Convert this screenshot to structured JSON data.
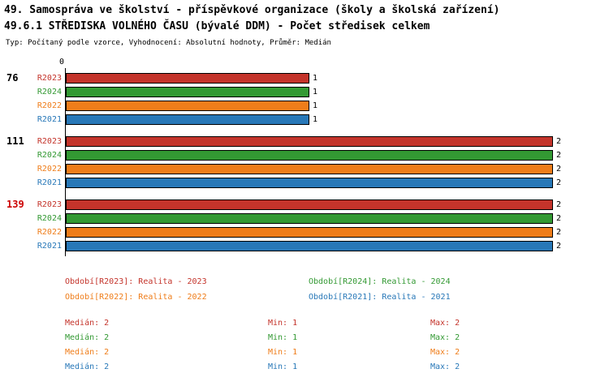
{
  "header": {
    "title_line1": "49. Samospráva ve školství - příspěvkové organizace (školy a školská zařízení)",
    "title_line2": "49.6.1 STŘEDISKA VOLNÉHO ČASU (bývalé DDM) - Počet středisek celkem",
    "subtitle": "Typ: Počítaný podle vzorce, Vyhodnocení: Absolutní hodnoty, Průměr: Medián"
  },
  "chart_data": {
    "type": "bar",
    "orientation": "horizontal",
    "x_origin_label": "0",
    "xlim": [
      0,
      2
    ],
    "grid": false,
    "series_order": [
      "R2023",
      "R2024",
      "R2022",
      "R2021"
    ],
    "series_colors": {
      "R2023": "#c4342b",
      "R2024": "#339933",
      "R2022": "#ef7d1a",
      "R2021": "#2878b8"
    },
    "groups": [
      {
        "label": "76",
        "label_color": "#000000",
        "values": {
          "R2023": 1,
          "R2024": 1,
          "R2022": 1,
          "R2021": 1
        }
      },
      {
        "label": "111",
        "label_color": "#000000",
        "values": {
          "R2023": 2,
          "R2024": 2,
          "R2022": 2,
          "R2021": 2
        }
      },
      {
        "label": "139",
        "label_color": "#cc0000",
        "values": {
          "R2023": 2,
          "R2024": 2,
          "R2022": 2,
          "R2021": 2
        }
      }
    ],
    "legend": [
      {
        "series": "R2023",
        "label": "Období[R2023]: Realita - 2023",
        "color": "#c4342b"
      },
      {
        "series": "R2024",
        "label": "Období[R2024]: Realita - 2024",
        "color": "#339933"
      },
      {
        "series": "R2022",
        "label": "Období[R2022]: Realita - 2022",
        "color": "#ef7d1a"
      },
      {
        "series": "R2021",
        "label": "Období[R2021]: Realita - 2021",
        "color": "#2878b8"
      }
    ],
    "stats_labels": {
      "median": "Medián",
      "min": "Min",
      "max": "Max"
    },
    "stats": [
      {
        "series": "R2023",
        "color": "#c4342b",
        "median": 2,
        "min": 1,
        "max": 2
      },
      {
        "series": "R2024",
        "color": "#339933",
        "median": 2,
        "min": 1,
        "max": 2
      },
      {
        "series": "R2022",
        "color": "#ef7d1a",
        "median": 2,
        "min": 1,
        "max": 2
      },
      {
        "series": "R2021",
        "color": "#2878b8",
        "median": 2,
        "min": 1,
        "max": 2
      }
    ]
  }
}
